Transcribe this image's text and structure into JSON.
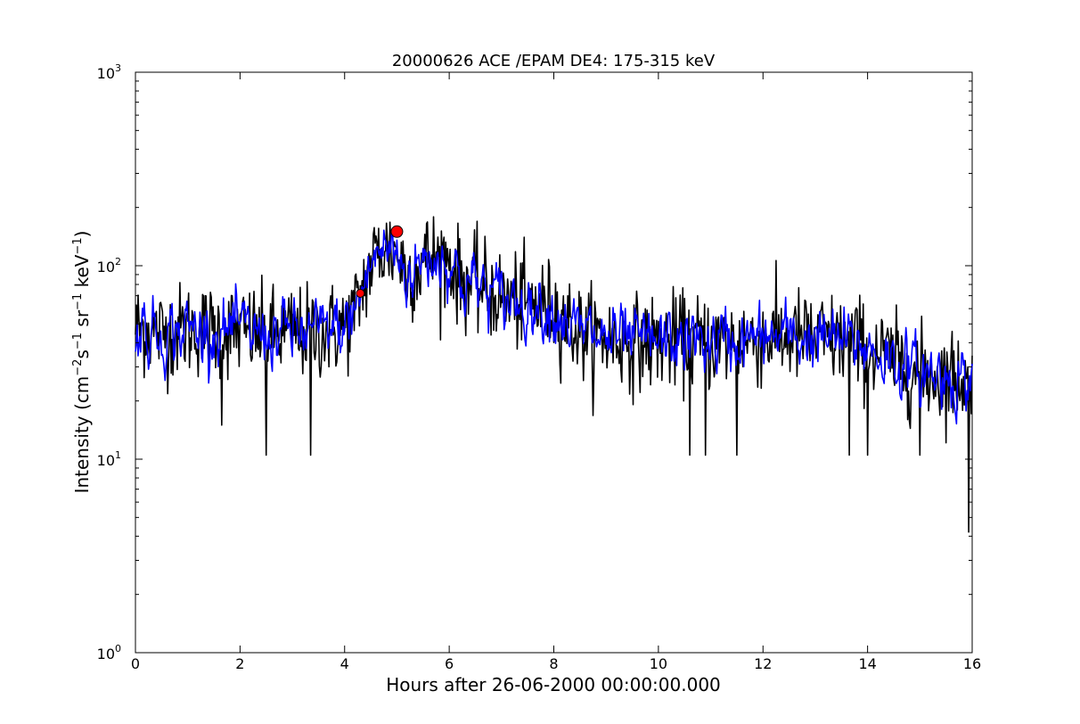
{
  "chart_data": {
    "type": "line",
    "title": "20000626 ACE /EPAM DE4: 175-315 keV",
    "xlabel": "Hours after 26-06-2000 00:00:00.000",
    "ylabel": {
      "prefix": "Intensity (cm",
      "exp1": "−2",
      "s": "s",
      "exp2": "−1",
      "sr": " sr",
      "exp3": "−1",
      "kev": " keV",
      "exp4": "−1",
      "suffix": ")"
    },
    "xlim": [
      0,
      16
    ],
    "ylim": [
      1,
      1000
    ],
    "yscale": "log",
    "x_ticks": [
      "0",
      "2",
      "4",
      "6",
      "8",
      "10",
      "12",
      "14",
      "16"
    ],
    "y_ticks": [
      {
        "base": "10",
        "exp": "0"
      },
      {
        "base": "10",
        "exp": "1"
      },
      {
        "base": "10",
        "exp": "2"
      },
      {
        "base": "10",
        "exp": "3"
      }
    ],
    "grid": false,
    "series": [
      {
        "color": "#000000",
        "style": "raw noisy line",
        "x": [
          0,
          0.5,
          1,
          1.5,
          2,
          2.5,
          3,
          3.5,
          4,
          4.2,
          4.4,
          4.6,
          4.8,
          5,
          5.2,
          5.4,
          5.6,
          5.8,
          6,
          6.2,
          6.5,
          7,
          7.5,
          8,
          8.5,
          9,
          9.5,
          10,
          10.5,
          11,
          11.5,
          12,
          12.5,
          13,
          13.5,
          14,
          14.5,
          15,
          15.5,
          16
        ],
        "y": [
          48,
          45,
          47,
          46,
          46,
          44,
          45,
          45,
          48,
          58,
          85,
          115,
          122,
          118,
          90,
          98,
          112,
          110,
          108,
          85,
          80,
          68,
          64,
          60,
          45,
          42,
          40,
          40,
          41,
          40,
          41,
          42,
          43,
          42,
          41,
          38,
          32,
          28,
          27,
          26
        ]
      },
      {
        "color": "#0000ff",
        "style": "smoothed line",
        "x": [
          0,
          0.5,
          1,
          1.5,
          2,
          2.5,
          3,
          3.5,
          4,
          4.2,
          4.4,
          4.6,
          4.8,
          5,
          5.2,
          5.4,
          5.6,
          5.8,
          6,
          6.2,
          6.5,
          7,
          7.5,
          8,
          8.5,
          9,
          9.5,
          10,
          10.5,
          11,
          11.5,
          12,
          12.5,
          13,
          13.5,
          14,
          14.5,
          15,
          15.5,
          16
        ],
        "y": [
          48,
          45,
          47,
          46,
          46,
          44,
          45,
          45,
          48,
          58,
          85,
          115,
          122,
          118,
          90,
          98,
          112,
          110,
          108,
          85,
          80,
          68,
          64,
          60,
          45,
          42,
          40,
          40,
          41,
          40,
          41,
          42,
          43,
          42,
          41,
          38,
          32,
          28,
          27,
          26
        ]
      }
    ],
    "markers": [
      {
        "x": 4.3,
        "y": 72,
        "color": "#ff0000",
        "size": "small"
      },
      {
        "x": 5.0,
        "y": 150,
        "color": "#ff0000",
        "size": "large"
      }
    ],
    "noise_spikes_down": [
      {
        "x": 1.65,
        "y": 15
      },
      {
        "x": 2.5,
        "y": 10.5
      },
      {
        "x": 3.35,
        "y": 10.5
      },
      {
        "x": 10.6,
        "y": 10.5
      },
      {
        "x": 10.9,
        "y": 10.5
      },
      {
        "x": 11.5,
        "y": 10.5
      },
      {
        "x": 13.65,
        "y": 10.5
      },
      {
        "x": 14.0,
        "y": 10.5
      },
      {
        "x": 15.0,
        "y": 10.5
      },
      {
        "x": 15.93,
        "y": 4.2
      }
    ]
  }
}
